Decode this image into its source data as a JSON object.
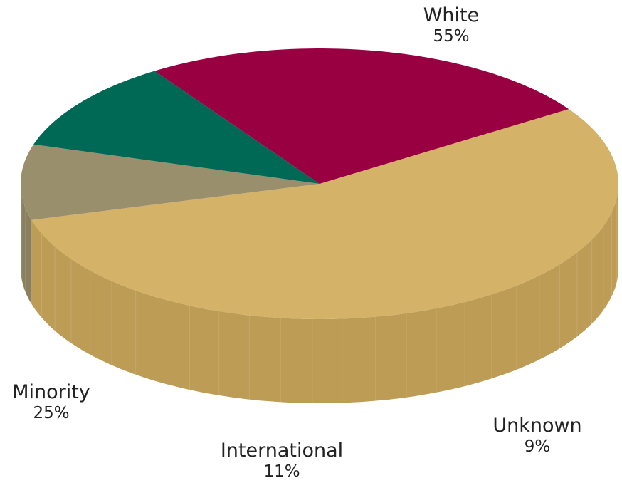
{
  "chart_data": {
    "type": "pie",
    "style": "3d",
    "slices": [
      {
        "label": "White",
        "value": 55,
        "pct_label": "55%",
        "color": "#D4B267",
        "side_color": "#BD9C56"
      },
      {
        "label": "Unknown",
        "value": 9,
        "pct_label": "9%",
        "color": "#9A8F6C",
        "side_color": "#8A8060"
      },
      {
        "label": "International",
        "value": 11,
        "pct_label": "11%",
        "color": "#006956",
        "side_color": "#005A4A"
      },
      {
        "label": "Minority",
        "value": 25,
        "pct_label": "25%",
        "color": "#990042",
        "side_color": "#820036"
      }
    ]
  }
}
